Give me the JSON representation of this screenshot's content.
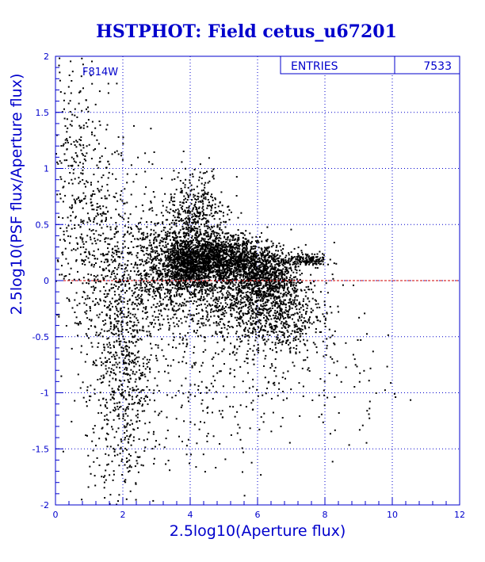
{
  "chart_data": {
    "type": "scatter",
    "title": "HSTPHOT: Field cetus_u67201",
    "xlabel": "2.5log10(Aperture flux)",
    "ylabel": "2.5log10(PSF flux/Aperture flux)",
    "xlim": [
      0,
      12
    ],
    "ylim": [
      -2,
      2
    ],
    "x_ticks": [
      0,
      2,
      4,
      6,
      8,
      10,
      12
    ],
    "y_ticks": [
      -2,
      -1.5,
      -1,
      -0.5,
      0,
      0.5,
      1,
      1.5,
      2
    ],
    "x_tick_labels": [
      "0",
      "2",
      "4",
      "6",
      "8",
      "10",
      "12"
    ],
    "y_tick_labels": [
      "-2",
      "-1.5",
      "-1",
      "-0.5",
      "0",
      "0.5",
      "1",
      "1.5",
      "2"
    ],
    "grid": true,
    "reference_line": {
      "y": 0,
      "color": "#cc0000"
    },
    "filter_label": "F814W",
    "stats_box": {
      "label": "ENTRIES",
      "value": "7533"
    },
    "entries": 7533,
    "clusters": [
      {
        "cx": 4.1,
        "cy": 0.15,
        "sx": 0.45,
        "sy": 0.12,
        "n": 1300
      },
      {
        "cx": 5.2,
        "cy": 0.2,
        "sx": 0.55,
        "sy": 0.1,
        "n": 900
      },
      {
        "cx": 6.2,
        "cy": 0.05,
        "sx": 0.45,
        "sy": 0.12,
        "n": 650
      },
      {
        "cx": 4.2,
        "cy": 0.55,
        "sx": 0.45,
        "sy": 0.2,
        "n": 450
      },
      {
        "cx": 5.5,
        "cy": -0.15,
        "sx": 1.0,
        "sy": 0.2,
        "n": 900
      },
      {
        "cx": 6.8,
        "cy": -0.3,
        "sx": 0.6,
        "sy": 0.2,
        "n": 450
      },
      {
        "cx": 7.5,
        "cy": 0.18,
        "sx": 0.3,
        "sy": 0.03,
        "n": 150
      },
      {
        "cx": 3.2,
        "cy": 0.1,
        "sx": 0.5,
        "sy": 0.3,
        "n": 600
      },
      {
        "cx": 2.0,
        "cy": -0.5,
        "sx": 0.4,
        "sy": 0.5,
        "n": 500
      },
      {
        "cx": 1.2,
        "cy": 0.3,
        "sx": 0.7,
        "sy": 0.55,
        "n": 550
      },
      {
        "cx": 2.0,
        "cy": -1.3,
        "sx": 0.6,
        "sy": 0.4,
        "n": 250
      },
      {
        "cx": 4.5,
        "cy": -0.8,
        "sx": 1.6,
        "sy": 0.5,
        "n": 350
      },
      {
        "cx": 0.5,
        "cy": 1.3,
        "sx": 0.4,
        "sy": 0.4,
        "n": 150
      },
      {
        "cx": 8.8,
        "cy": -0.8,
        "sx": 0.8,
        "sy": 0.4,
        "n": 60
      }
    ]
  }
}
